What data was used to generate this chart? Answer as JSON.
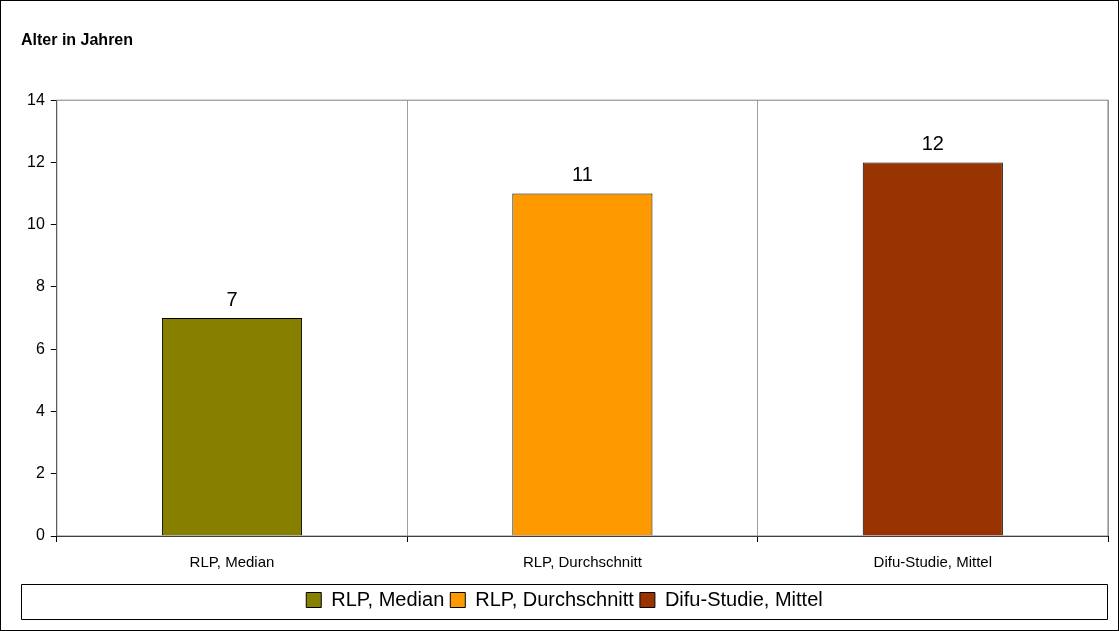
{
  "chart_data": {
    "type": "bar",
    "title": "Alter in Jahren",
    "categories": [
      "RLP, Median",
      "RLP, Durchschnitt",
      "Difu-Studie, Mittel"
    ],
    "series": [
      {
        "name": "RLP, Median",
        "color": "#877f00",
        "values": [
          7,
          null,
          null
        ]
      },
      {
        "name": "RLP, Durchschnitt",
        "color": "#ff9900",
        "values": [
          null,
          11,
          null
        ]
      },
      {
        "name": "Difu-Studie, Mittel",
        "color": "#993300",
        "values": [
          null,
          null,
          12
        ]
      }
    ],
    "ylim": [
      0,
      14
    ],
    "yticks": [
      0,
      2,
      4,
      6,
      8,
      10,
      12,
      14
    ],
    "grid": "x",
    "legend": "bottom",
    "data_labels": true
  }
}
